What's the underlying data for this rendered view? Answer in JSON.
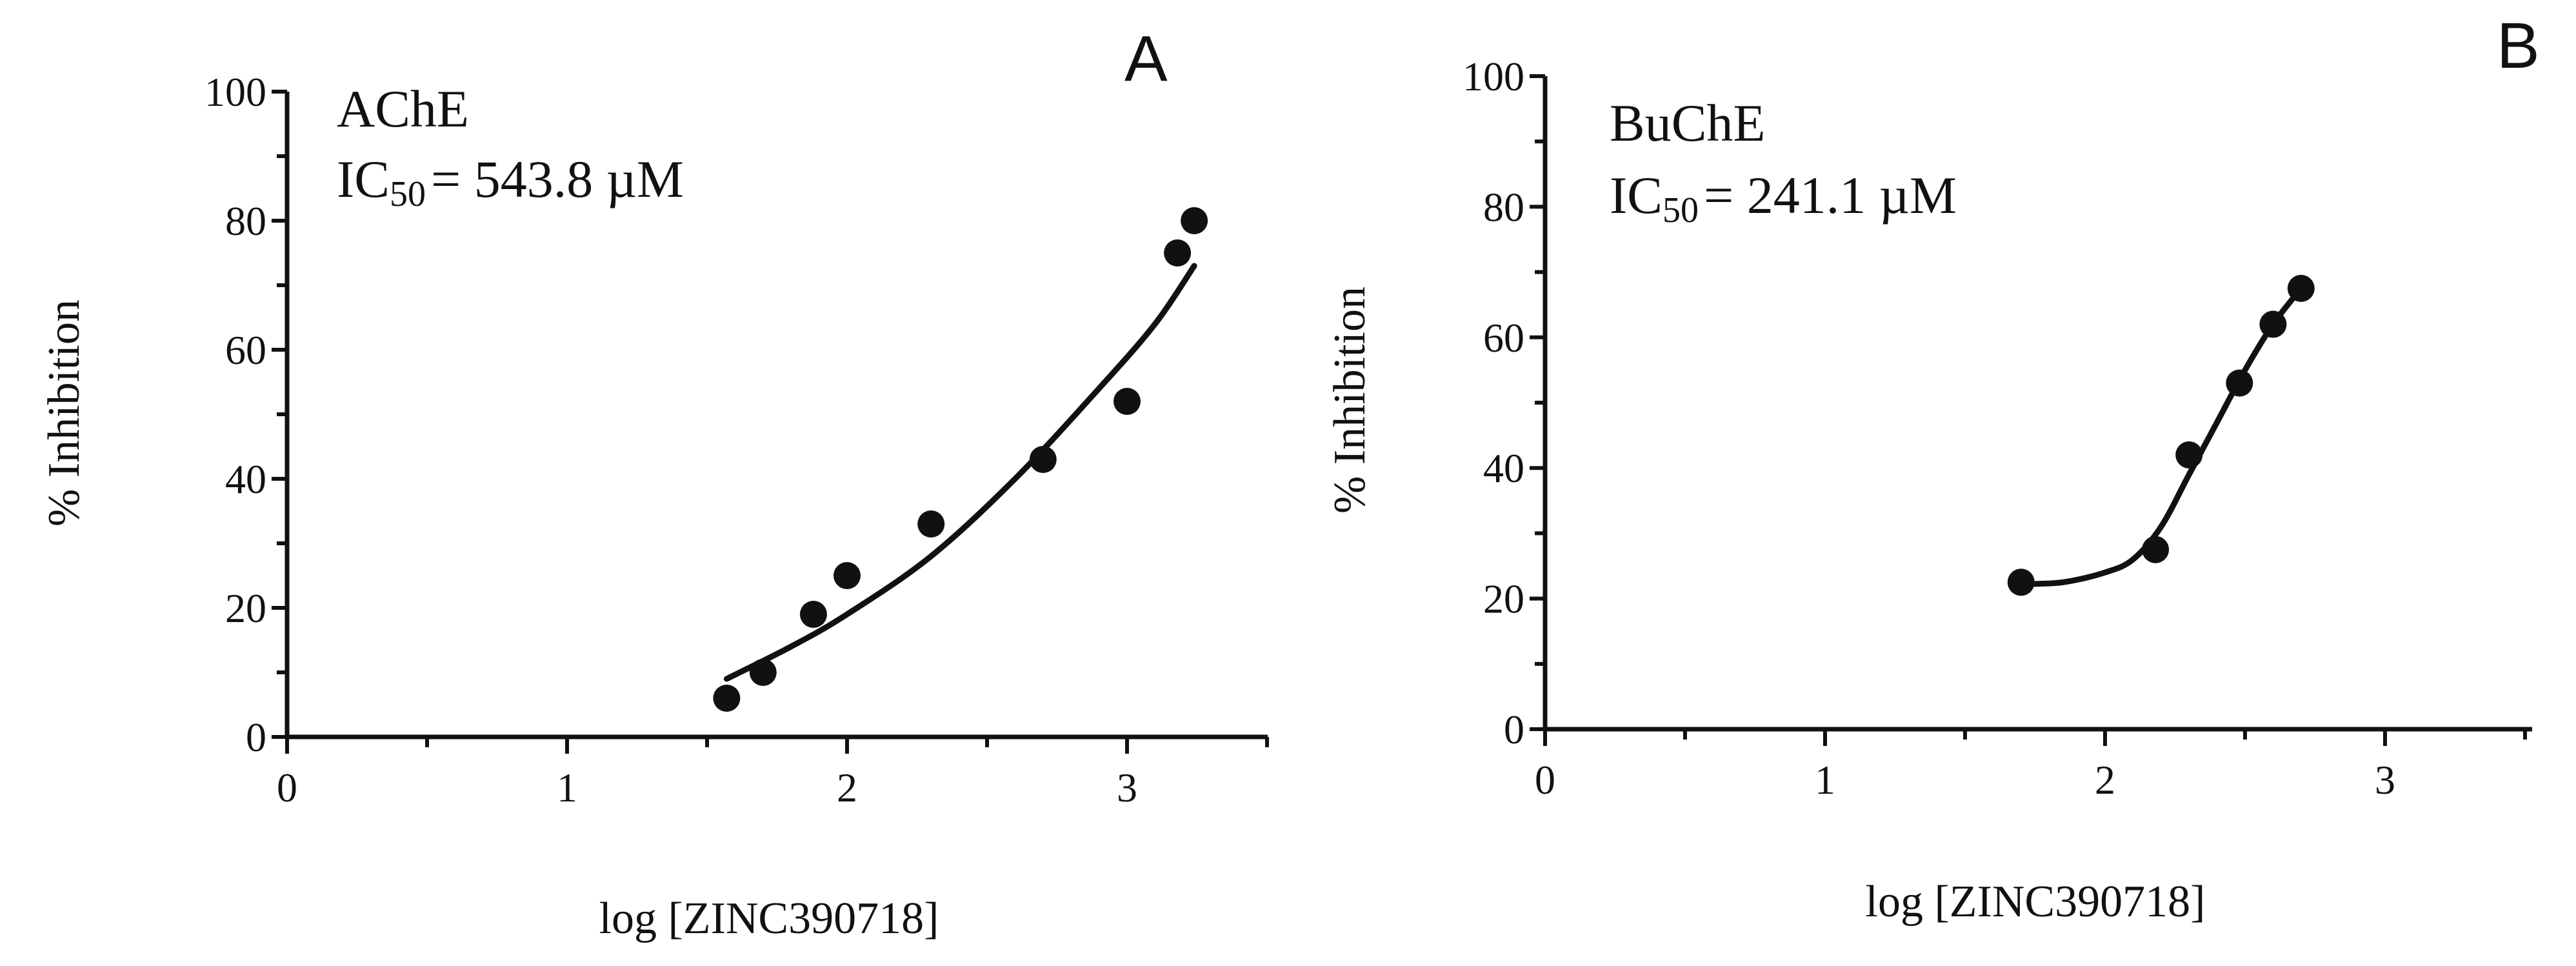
{
  "chart_data": [
    {
      "panel": "A",
      "type": "scatter",
      "enzyme": "AChE",
      "ic50_prefix": "IC",
      "ic50_sub": "50",
      "ic50_text": "= 543.8 µM",
      "xlabel": "log [ZINC390718]",
      "ylabel": "% Inhibition",
      "xlim": [
        0,
        3.5
      ],
      "ylim": [
        0,
        100
      ],
      "xticks": [
        0,
        1,
        2,
        3
      ],
      "yticks": [
        0,
        20,
        40,
        60,
        80,
        100
      ],
      "points": [
        {
          "x": 1.57,
          "y": 6
        },
        {
          "x": 1.7,
          "y": 10
        },
        {
          "x": 1.88,
          "y": 19
        },
        {
          "x": 2.0,
          "y": 25
        },
        {
          "x": 2.3,
          "y": 33
        },
        {
          "x": 2.7,
          "y": 43
        },
        {
          "x": 3.0,
          "y": 52
        },
        {
          "x": 3.18,
          "y": 75
        },
        {
          "x": 3.24,
          "y": 80
        }
      ],
      "fit": [
        {
          "x": 1.57,
          "y": 9
        },
        {
          "x": 1.8,
          "y": 14
        },
        {
          "x": 2.0,
          "y": 19
        },
        {
          "x": 2.3,
          "y": 28
        },
        {
          "x": 2.6,
          "y": 40
        },
        {
          "x": 2.9,
          "y": 54
        },
        {
          "x": 3.1,
          "y": 64
        },
        {
          "x": 3.24,
          "y": 73
        }
      ]
    },
    {
      "panel": "B",
      "type": "scatter",
      "enzyme": "BuChE",
      "ic50_prefix": "IC",
      "ic50_sub": "50",
      "ic50_text": "= 241.1 µM",
      "xlabel": "log [ZINC390718]",
      "ylabel": "% Inhibition",
      "xlim": [
        0,
        3.5
      ],
      "ylim": [
        0,
        100
      ],
      "xticks": [
        0,
        1,
        2,
        3
      ],
      "yticks": [
        0,
        20,
        40,
        60,
        80,
        100
      ],
      "points": [
        {
          "x": 1.7,
          "y": 22.5
        },
        {
          "x": 2.18,
          "y": 27.5
        },
        {
          "x": 2.3,
          "y": 42
        },
        {
          "x": 2.48,
          "y": 53
        },
        {
          "x": 2.6,
          "y": 62
        },
        {
          "x": 2.7,
          "y": 67.5
        }
      ],
      "fit": [
        {
          "x": 1.7,
          "y": 22.2
        },
        {
          "x": 1.85,
          "y": 22.5
        },
        {
          "x": 2.0,
          "y": 24
        },
        {
          "x": 2.1,
          "y": 26
        },
        {
          "x": 2.2,
          "y": 31
        },
        {
          "x": 2.3,
          "y": 39
        },
        {
          "x": 2.4,
          "y": 47
        },
        {
          "x": 2.5,
          "y": 55
        },
        {
          "x": 2.6,
          "y": 62
        },
        {
          "x": 2.7,
          "y": 67.5
        }
      ]
    }
  ]
}
